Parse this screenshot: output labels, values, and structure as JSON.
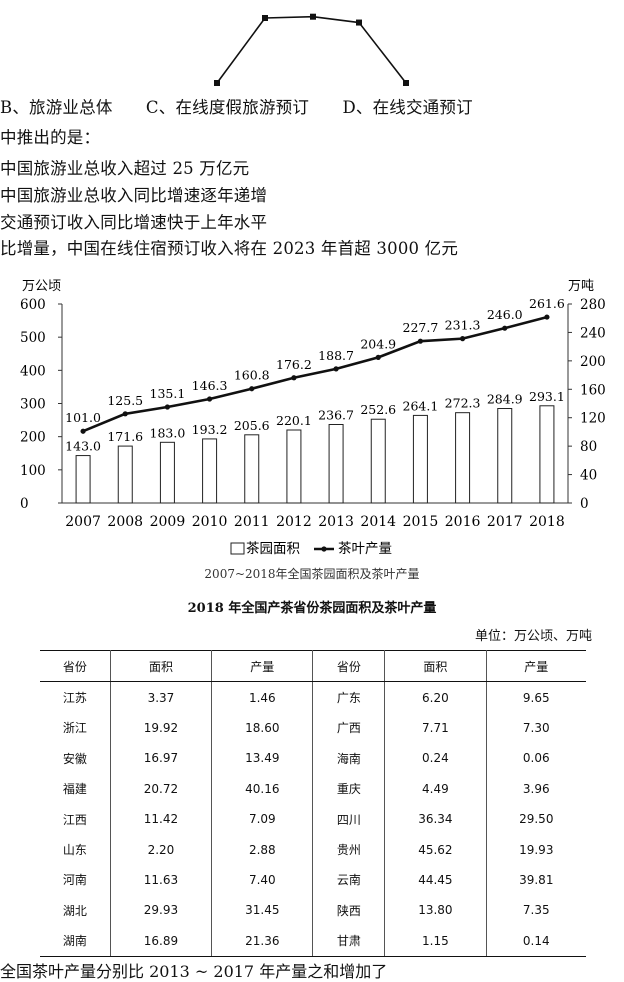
{
  "question_lines": [
    "B、旅游业总体　　C、在线度假旅游预订　　D、在线交通预订",
    "中推出的是：",
    "中国旅游业总收入超过 25 万亿元",
    "中国旅游业总收入同比增速逐年递增",
    "交通预订收入同比增速快于上年水平",
    "比增量，中国在线住宿预订收入将在 2023 年首超 3000 亿元"
  ],
  "chart_data": {
    "type": "bar",
    "categories": [
      "2007",
      "2008",
      "2009",
      "2010",
      "2011",
      "2012",
      "2013",
      "2014",
      "2015",
      "2016",
      "2017",
      "2018"
    ],
    "series": [
      {
        "name": "茶园面积",
        "type": "bar",
        "axis": "left",
        "values": [
          143.0,
          171.6,
          183.0,
          193.2,
          205.6,
          220.1,
          236.7,
          252.6,
          264.1,
          272.3,
          284.9,
          293.1
        ],
        "labels": [
          "143.0",
          "171.6",
          "183.0",
          "193.2",
          "205.6",
          "220.1",
          "236.7",
          "252.6",
          "264.1",
          "272.3",
          "284.9",
          "293.1"
        ]
      },
      {
        "name": "茶叶产量",
        "type": "line",
        "axis": "right",
        "values": [
          101.0,
          125.5,
          135.1,
          146.3,
          160.8,
          176.2,
          188.7,
          204.9,
          227.7,
          231.3,
          246.0,
          261.6
        ],
        "labels": [
          "101.0",
          "125.5",
          "135.1",
          "146.3",
          "160.8",
          "176.2",
          "188.7",
          "204.9",
          "227.7",
          "231.3",
          "246.0",
          "261.6"
        ]
      }
    ],
    "left_unit": "万公顷",
    "right_unit": "万吨",
    "ylim_left": [
      0,
      600
    ],
    "ylim_right": [
      0,
      280
    ],
    "left_ticks": [
      "0",
      "100",
      "200",
      "300",
      "400",
      "500",
      "600"
    ],
    "right_ticks": [
      "0",
      "40",
      "80",
      "120",
      "160",
      "200",
      "240",
      "280"
    ],
    "caption": "2007~2018年全国茶园面积及茶叶产量",
    "legend_placement": "bottom-center"
  },
  "top_fragment_line": {
    "description_free": true,
    "values": [
      0.0,
      1.0,
      1.02,
      0.93,
      0.0
    ]
  },
  "table": {
    "title": "2018 年全国产茶省份茶园面积及茶叶产量",
    "unit": "单位：万公顷、万吨",
    "headers": [
      "省份",
      "面积",
      "产量",
      "省份",
      "面积",
      "产量"
    ],
    "rows": [
      [
        "江苏",
        "3.37",
        "1.46",
        "广东",
        "6.20",
        "9.65"
      ],
      [
        "浙江",
        "19.92",
        "18.60",
        "广西",
        "7.71",
        "7.30"
      ],
      [
        "安徽",
        "16.97",
        "13.49",
        "海南",
        "0.24",
        "0.06"
      ],
      [
        "福建",
        "20.72",
        "40.16",
        "重庆",
        "4.49",
        "3.96"
      ],
      [
        "江西",
        "11.42",
        "7.09",
        "四川",
        "36.34",
        "29.50"
      ],
      [
        "山东",
        "2.20",
        "2.88",
        "贵州",
        "45.62",
        "19.93"
      ],
      [
        "河南",
        "11.63",
        "7.40",
        "云南",
        "44.45",
        "39.81"
      ],
      [
        "湖北",
        "29.93",
        "31.45",
        "陕西",
        "13.80",
        "7.35"
      ],
      [
        "湖南",
        "16.89",
        "21.36",
        "甘肃",
        "1.15",
        "0.14"
      ]
    ]
  },
  "bottom_fragment": "全国茶叶产量分别比 2013 ~ 2017 年产量之和增加了"
}
